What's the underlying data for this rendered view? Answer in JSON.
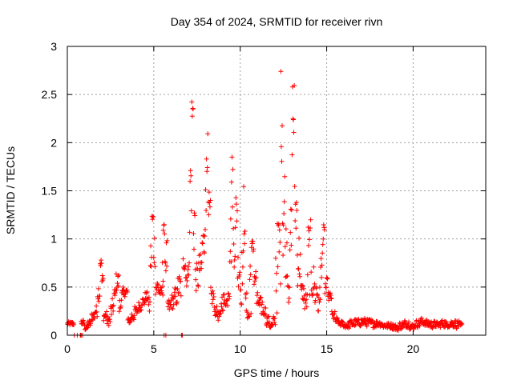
{
  "chart_data": {
    "type": "scatter",
    "title": "Day 354 of 2024, SRMTID for receiver rivn",
    "xlabel": "GPS time / hours",
    "ylabel": "SRMTID / TECUs",
    "xlim": [
      0,
      24.2
    ],
    "ylim": [
      0,
      3
    ],
    "x_ticks": [
      0,
      5,
      10,
      15,
      20
    ],
    "x_tick_labels": [
      "0",
      "5",
      "10",
      "15",
      "20"
    ],
    "y_ticks": [
      0,
      0.5,
      1,
      1.5,
      2,
      2.5,
      3
    ],
    "y_tick_labels": [
      "0",
      "0.5",
      "1",
      "1.5",
      "2",
      "2.5",
      "3"
    ],
    "grid": true,
    "marker": "+",
    "color": "#ff0000",
    "series": [
      {
        "name": "SRMTID",
        "segments": [
          [
            0.0,
            0.12,
            0.02
          ],
          [
            0.4,
            0.0,
            0.0
          ],
          [
            0.75,
            0.0,
            0.0
          ],
          [
            0.8,
            0.0,
            0.0
          ],
          [
            0.8,
            0.13,
            0.03
          ],
          [
            1.0,
            0.08,
            0.03
          ],
          [
            1.2,
            0.12,
            0.04
          ],
          [
            1.4,
            0.2,
            0.05
          ],
          [
            1.6,
            0.25,
            0.06
          ],
          [
            1.75,
            0.45,
            0.1
          ],
          [
            1.9,
            0.75,
            0.05
          ],
          [
            2.0,
            0.55,
            0.1
          ],
          [
            2.1,
            0.2,
            0.05
          ],
          [
            2.3,
            0.15,
            0.05
          ],
          [
            2.5,
            0.25,
            0.08
          ],
          [
            2.6,
            0.3,
            0.08
          ],
          [
            2.7,
            0.4,
            0.1
          ],
          [
            2.8,
            0.55,
            0.1
          ],
          [
            3.0,
            0.3,
            0.1
          ],
          [
            3.1,
            0.4,
            0.1
          ],
          [
            3.3,
            0.45,
            0.05
          ],
          [
            3.5,
            0.15,
            0.03
          ],
          [
            3.7,
            0.2,
            0.05
          ],
          [
            3.9,
            0.25,
            0.05
          ],
          [
            4.1,
            0.3,
            0.05
          ],
          [
            4.3,
            0.35,
            0.05
          ],
          [
            4.5,
            0.4,
            0.05
          ],
          [
            4.7,
            0.3,
            0.1
          ],
          [
            4.8,
            0.8,
            0.2
          ],
          [
            4.9,
            1.2,
            0.08
          ],
          [
            5.0,
            0.9,
            0.2
          ],
          [
            5.1,
            0.5,
            0.1
          ],
          [
            5.3,
            0.45,
            0.05
          ],
          [
            5.5,
            0.6,
            0.2
          ],
          [
            5.55,
            1.1,
            0.05
          ],
          [
            5.65,
            0.8,
            0.2
          ],
          [
            5.6,
            0.0,
            0.0
          ],
          [
            5.8,
            0.3,
            0.08
          ],
          [
            6.0,
            0.35,
            0.08
          ],
          [
            6.2,
            0.4,
            0.1
          ],
          [
            6.4,
            0.5,
            0.15
          ],
          [
            6.6,
            0.0,
            0.0
          ],
          [
            6.7,
            0.75,
            0.08
          ],
          [
            6.85,
            0.6,
            0.1
          ],
          [
            7.0,
            0.9,
            0.3
          ],
          [
            7.1,
            1.6,
            0.4
          ],
          [
            7.2,
            2.3,
            0.2
          ],
          [
            7.3,
            1.2,
            0.4
          ],
          [
            7.4,
            0.6,
            0.15
          ],
          [
            7.6,
            0.7,
            0.15
          ],
          [
            7.8,
            0.95,
            0.2
          ],
          [
            7.95,
            1.3,
            0.3
          ],
          [
            8.05,
            1.9,
            0.2
          ],
          [
            8.15,
            1.2,
            0.3
          ],
          [
            8.3,
            0.4,
            0.1
          ],
          [
            8.5,
            0.25,
            0.05
          ],
          [
            8.7,
            0.2,
            0.05
          ],
          [
            8.9,
            0.35,
            0.1
          ],
          [
            9.1,
            0.35,
            0.05
          ],
          [
            9.3,
            0.5,
            0.15
          ],
          [
            9.4,
            1.0,
            0.3
          ],
          [
            9.5,
            1.6,
            0.3
          ],
          [
            9.6,
            1.0,
            0.3
          ],
          [
            9.75,
            1.3,
            0.2
          ],
          [
            9.85,
            0.7,
            0.2
          ],
          [
            10.0,
            0.5,
            0.2
          ],
          [
            10.1,
            0.7,
            0.2
          ],
          [
            10.2,
            1.3,
            0.4
          ],
          [
            10.3,
            0.3,
            0.15
          ],
          [
            10.45,
            0.2,
            0.05
          ],
          [
            10.55,
            0.6,
            0.4
          ],
          [
            10.65,
            0.9,
            0.1
          ],
          [
            10.8,
            0.6,
            0.1
          ],
          [
            10.95,
            0.35,
            0.1
          ],
          [
            11.1,
            0.3,
            0.1
          ],
          [
            11.3,
            0.25,
            0.05
          ],
          [
            11.5,
            0.15,
            0.05
          ],
          [
            11.7,
            0.1,
            0.03
          ],
          [
            11.9,
            0.15,
            0.05
          ],
          [
            12.05,
            0.7,
            0.5
          ],
          [
            12.2,
            0.9,
            0.4
          ],
          [
            12.35,
            2.3,
            0.5
          ],
          [
            12.45,
            1.3,
            0.6
          ],
          [
            12.6,
            0.9,
            0.3
          ],
          [
            12.75,
            0.6,
            0.3
          ],
          [
            12.9,
            1.0,
            0.4
          ],
          [
            13.0,
            2.3,
            0.5
          ],
          [
            13.15,
            1.3,
            0.3
          ],
          [
            13.3,
            0.8,
            0.3
          ],
          [
            13.5,
            0.45,
            0.1
          ],
          [
            13.7,
            0.35,
            0.1
          ],
          [
            13.9,
            0.8,
            0.4
          ],
          [
            14.1,
            0.55,
            0.2
          ],
          [
            14.3,
            0.45,
            0.2
          ],
          [
            14.5,
            0.3,
            0.1
          ],
          [
            14.6,
            0.6,
            0.3
          ],
          [
            14.75,
            1.0,
            0.15
          ],
          [
            14.9,
            0.5,
            0.1
          ],
          [
            15.1,
            0.4,
            0.05
          ],
          [
            15.3,
            0.2,
            0.05
          ],
          [
            15.5,
            0.15,
            0.04
          ],
          [
            15.7,
            0.12,
            0.03
          ],
          [
            16.0,
            0.1,
            0.03
          ],
          [
            16.3,
            0.12,
            0.04
          ],
          [
            16.6,
            0.13,
            0.04
          ],
          [
            17.0,
            0.14,
            0.04
          ],
          [
            17.3,
            0.13,
            0.04
          ],
          [
            17.6,
            0.12,
            0.04
          ],
          [
            17.9,
            0.12,
            0.03
          ],
          [
            18.2,
            0.1,
            0.03
          ],
          [
            18.5,
            0.1,
            0.03
          ],
          [
            18.8,
            0.09,
            0.03
          ],
          [
            19.0,
            0.07,
            0.02
          ],
          [
            19.2,
            0.1,
            0.04
          ],
          [
            19.5,
            0.12,
            0.04
          ],
          [
            19.8,
            0.09,
            0.03
          ],
          [
            20.1,
            0.12,
            0.04
          ],
          [
            20.4,
            0.14,
            0.04
          ],
          [
            20.7,
            0.12,
            0.04
          ],
          [
            21.0,
            0.11,
            0.04
          ],
          [
            21.3,
            0.11,
            0.03
          ],
          [
            21.6,
            0.12,
            0.04
          ],
          [
            21.9,
            0.11,
            0.03
          ],
          [
            22.2,
            0.12,
            0.04
          ],
          [
            22.5,
            0.11,
            0.04
          ],
          [
            22.7,
            0.1,
            0.03
          ]
        ]
      }
    ]
  }
}
